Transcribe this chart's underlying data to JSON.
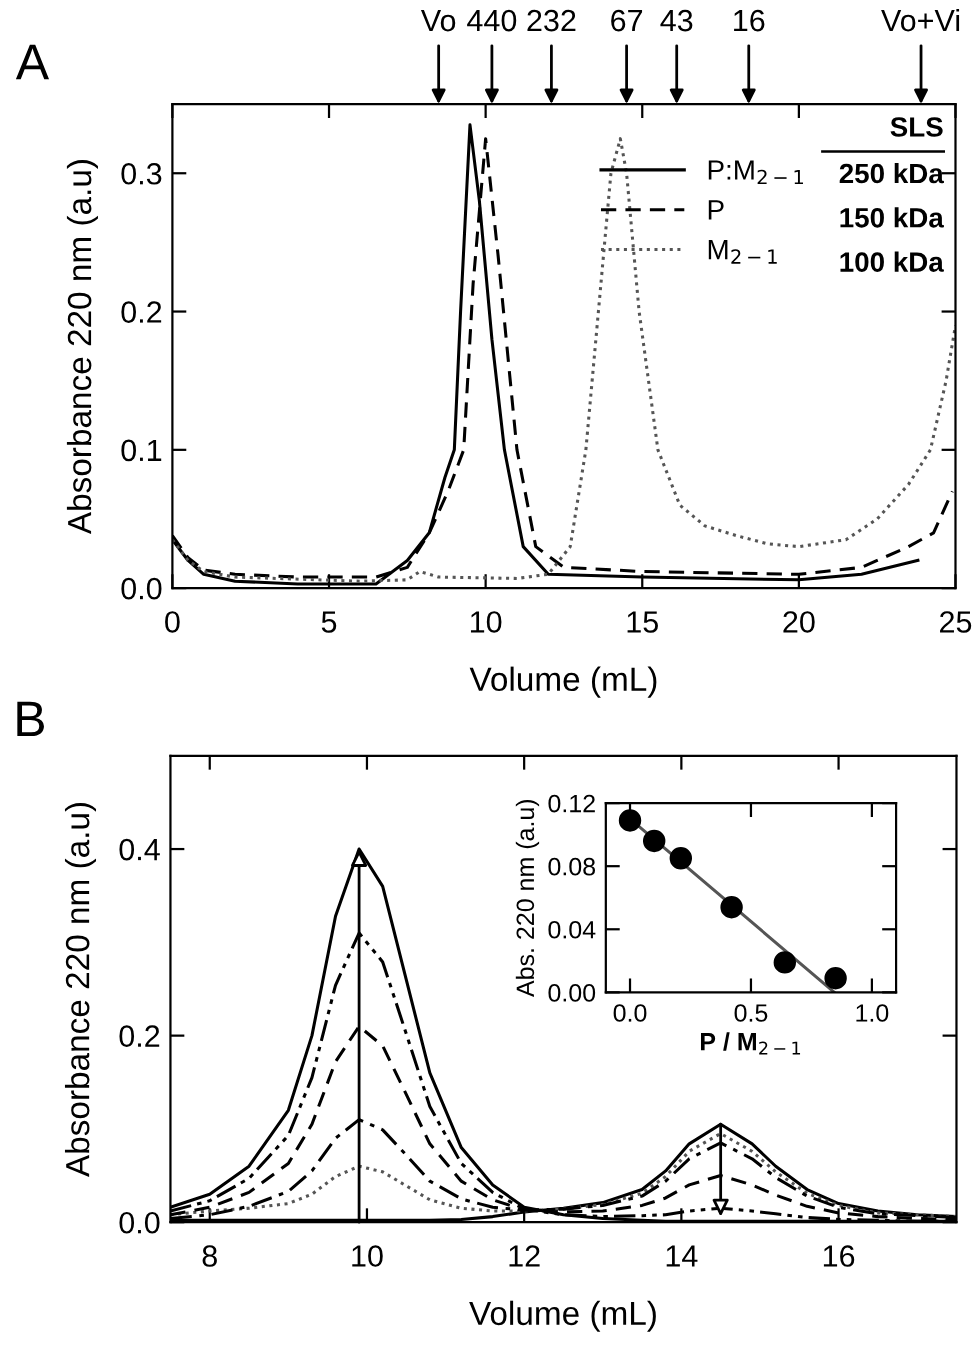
{
  "chart_data": [
    {
      "type": "line",
      "title": "A",
      "xlabel": "Volume (mL)",
      "ylabel": "Absorbance 220 nm (a.u)",
      "xlim": [
        0,
        25
      ],
      "ylim": [
        0,
        0.35
      ],
      "xticks": [
        0,
        5,
        10,
        15,
        20,
        25
      ],
      "yticks": [
        {
          "value": 0,
          "label": "0.0"
        },
        {
          "value": 0.1,
          "label": "0.1"
        },
        {
          "value": 0.2,
          "label": "0.2"
        },
        {
          "value": 0.3,
          "label": "0.3"
        }
      ],
      "legend": "top right",
      "grid": false,
      "annotations": [
        "SLS",
        "250 kDa",
        "150 kDa",
        "100 kDa",
        "Vo",
        "440",
        "232",
        "67",
        "43",
        "16",
        "Vo+Vi"
      ],
      "series": [
        {
          "name": "P:M$_{2−1}$",
          "color": "#000000",
          "line_style": "solid",
          "x": [
            0,
            0.5,
            1,
            2,
            4,
            6.5,
            7.5,
            8.2,
            8.7,
            9.0,
            9.2,
            9.5,
            9.8,
            10.2,
            10.6,
            11.2,
            12,
            15,
            20,
            22,
            23.8
          ],
          "values": [
            0.035,
            0.02,
            0.01,
            0.005,
            0.003,
            0.003,
            0.02,
            0.04,
            0.08,
            0.1,
            0.2,
            0.335,
            0.28,
            0.18,
            0.1,
            0.03,
            0.01,
            0.008,
            0.006,
            0.01,
            0.02
          ]
        },
        {
          "name": "P",
          "color": "#000000",
          "line_style": "dashed",
          "x": [
            0,
            0.5,
            1,
            2,
            4,
            6.5,
            7.5,
            8.2,
            8.8,
            9.3,
            9.6,
            10.0,
            10.4,
            11.0,
            11.6,
            12.5,
            15,
            20,
            22,
            23.5,
            24.3,
            24.9
          ],
          "values": [
            0.038,
            0.022,
            0.013,
            0.01,
            0.008,
            0.008,
            0.015,
            0.04,
            0.07,
            0.1,
            0.22,
            0.325,
            0.24,
            0.1,
            0.03,
            0.015,
            0.012,
            0.01,
            0.015,
            0.03,
            0.04,
            0.07
          ]
        },
        {
          "name": "M$_{2−1}$",
          "color": "#555555",
          "line_style": "dotted",
          "x": [
            0,
            0.5,
            1,
            2,
            6,
            7.5,
            7.9,
            8.5,
            11,
            12,
            12.7,
            13.2,
            13.6,
            14.0,
            14.3,
            14.5,
            14.9,
            15.5,
            16.2,
            17,
            18,
            19,
            20,
            21.5,
            22.5,
            23.5,
            24.2,
            24.7,
            25
          ],
          "values": [
            0.035,
            0.02,
            0.012,
            0.008,
            0.005,
            0.006,
            0.012,
            0.008,
            0.007,
            0.01,
            0.03,
            0.1,
            0.2,
            0.3,
            0.325,
            0.3,
            0.2,
            0.1,
            0.06,
            0.045,
            0.038,
            0.032,
            0.03,
            0.035,
            0.05,
            0.075,
            0.1,
            0.15,
            0.19
          ]
        }
      ]
    },
    {
      "type": "line",
      "title": "B",
      "xlabel": "Volume (mL)",
      "ylabel": "Absorbance 220 nm (a.u)",
      "xlim": [
        7.5,
        17.5
      ],
      "ylim": [
        0,
        0.5
      ],
      "xticks": [
        8,
        10,
        12,
        14,
        16
      ],
      "yticks": [
        {
          "value": 0,
          "label": "0.0"
        },
        {
          "value": 0.2,
          "label": "0.2"
        },
        {
          "value": 0.4,
          "label": "0.4"
        }
      ],
      "grid": false,
      "x": [
        7.5,
        8,
        8.5,
        9,
        9.3,
        9.6,
        9.9,
        10.2,
        10.5,
        10.8,
        11.2,
        11.6,
        12,
        12.5,
        13,
        13.5,
        13.8,
        14.1,
        14.5,
        14.9,
        15.2,
        15.6,
        16,
        16.5,
        17,
        17.5
      ],
      "series": [
        {
          "color": "#000000",
          "line_style": "solid",
          "values": [
            0.002,
            0.002,
            0.002,
            0.002,
            0.002,
            0.002,
            0.002,
            0.002,
            0.002,
            0.002,
            0.003,
            0.006,
            0.011,
            0.015,
            0.021,
            0.035,
            0.055,
            0.084,
            0.105,
            0.084,
            0.06,
            0.035,
            0.02,
            0.012,
            0.008,
            0.006
          ]
        },
        {
          "color": "#555555",
          "line_style": "dotted",
          "values": [
            0.008,
            0.012,
            0.015,
            0.02,
            0.03,
            0.049,
            0.06,
            0.054,
            0.039,
            0.024,
            0.015,
            0.012,
            0.012,
            0.014,
            0.019,
            0.031,
            0.049,
            0.076,
            0.095,
            0.076,
            0.054,
            0.031,
            0.018,
            0.01,
            0.008,
            0.006
          ]
        },
        {
          "color": "#000000",
          "line_style": "dashdot",
          "values": [
            0.004,
            0.008,
            0.017,
            0.033,
            0.055,
            0.09,
            0.11,
            0.099,
            0.072,
            0.044,
            0.025,
            0.016,
            0.013,
            0.014,
            0.018,
            0.028,
            0.044,
            0.068,
            0.085,
            0.068,
            0.048,
            0.028,
            0.016,
            0.009,
            0.007,
            0.005
          ]
        },
        {
          "color": "#000000",
          "line_style": "dashed",
          "values": [
            0.008,
            0.016,
            0.032,
            0.063,
            0.105,
            0.172,
            0.21,
            0.189,
            0.137,
            0.084,
            0.044,
            0.024,
            0.013,
            0.011,
            0.012,
            0.018,
            0.026,
            0.04,
            0.05,
            0.04,
            0.029,
            0.017,
            0.01,
            0.006,
            0.004,
            0.003
          ]
        },
        {
          "color": "#000000",
          "line_style": "dashdotdot",
          "values": [
            0.012,
            0.023,
            0.047,
            0.093,
            0.155,
            0.254,
            0.31,
            0.279,
            0.202,
            0.124,
            0.063,
            0.032,
            0.014,
            0.008,
            0.006,
            0.007,
            0.008,
            0.012,
            0.015,
            0.012,
            0.009,
            0.005,
            0.003,
            0.002,
            0.001,
            0.001
          ]
        },
        {
          "color": "#000000",
          "line_style": "solid",
          "values": [
            0.016,
            0.03,
            0.06,
            0.12,
            0.2,
            0.328,
            0.4,
            0.36,
            0.26,
            0.16,
            0.08,
            0.04,
            0.016,
            0.008,
            0.004,
            0.002,
            0.001,
            0.001,
            0.001,
            0.001,
            0.001,
            0.001,
            0.001,
            0.001,
            0.001,
            0.001
          ]
        }
      ]
    },
    {
      "type": "scatter",
      "xlabel": "P / M$_{2−1}$",
      "ylabel": "Abs. 220 nm (a.u)",
      "xlim": [
        -0.1,
        1.1
      ],
      "ylim": [
        0,
        0.12
      ],
      "xticks": [
        {
          "value": 0,
          "label": "0.0"
        },
        {
          "value": 0.5,
          "label": "0.5"
        },
        {
          "value": 1,
          "label": "1.0"
        }
      ],
      "yticks": [
        {
          "value": 0,
          "label": "0.00"
        },
        {
          "value": 0.04,
          "label": "0.04"
        },
        {
          "value": 0.08,
          "label": "0.08"
        },
        {
          "value": 0.12,
          "label": "0.12"
        }
      ],
      "grid": false,
      "series": [
        {
          "color": "#000000",
          "marker": "circle",
          "x": [
            0.0,
            0.1,
            0.21,
            0.42,
            0.64,
            0.85
          ],
          "values": [
            0.109,
            0.096,
            0.085,
            0.054,
            0.019,
            0.009
          ]
        },
        {
          "type": "line",
          "color": "#555555",
          "line_style": "solid",
          "x": [
            0.0,
            0.845
          ],
          "values": [
            0.11,
            0.0
          ]
        }
      ]
    }
  ]
}
